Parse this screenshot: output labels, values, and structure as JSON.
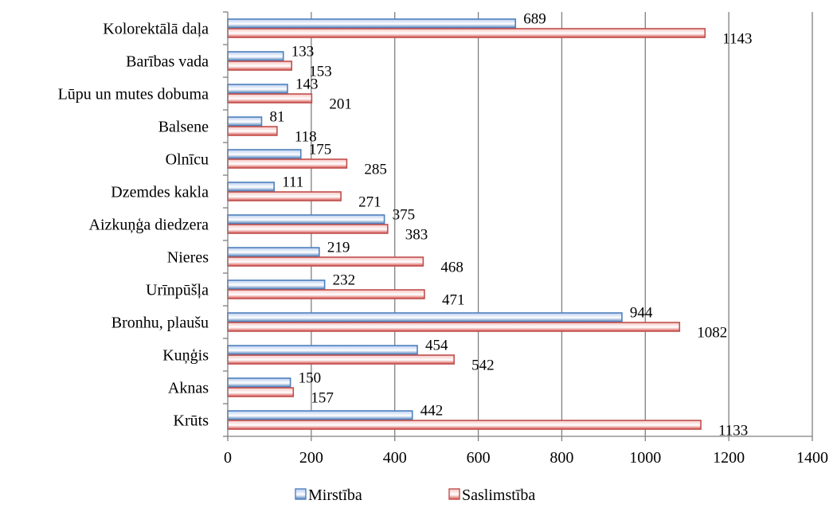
{
  "chart_data": {
    "type": "bar",
    "orientation": "horizontal",
    "categories": [
      "Kolorektālā daļa",
      "Barības vada",
      "Lūpu un mutes dobuma",
      "Balsene",
      "Olnīcu",
      "Dzemdes kakla",
      "Aizkuņģa diedzera",
      "Nieres",
      "Urīnpūšļa",
      "Bronhu, plaušu",
      "Kuņģis",
      "Aknas",
      "Krūts"
    ],
    "series": [
      {
        "name": "Mirstība",
        "values": [
          689,
          133,
          143,
          81,
          175,
          111,
          375,
          219,
          232,
          944,
          454,
          150,
          442
        ],
        "color": "#4f81bd",
        "fill_top": "#b9cdf0",
        "fill_bottom": "#4f81bd"
      },
      {
        "name": "Saslimstība",
        "values": [
          1143,
          153,
          201,
          118,
          285,
          271,
          383,
          468,
          471,
          1082,
          542,
          157,
          1133
        ],
        "color": "#c0504d",
        "fill_top": "#f6c4c2",
        "fill_bottom": "#d9534f"
      }
    ],
    "xlim": [
      0,
      1400
    ],
    "x_ticks": [
      "0",
      "200",
      "400",
      "600",
      "800",
      "1000",
      "1200",
      "1400"
    ],
    "grid": "vertical",
    "legend_position": "bottom",
    "title": "",
    "xlabel": "",
    "ylabel": ""
  }
}
